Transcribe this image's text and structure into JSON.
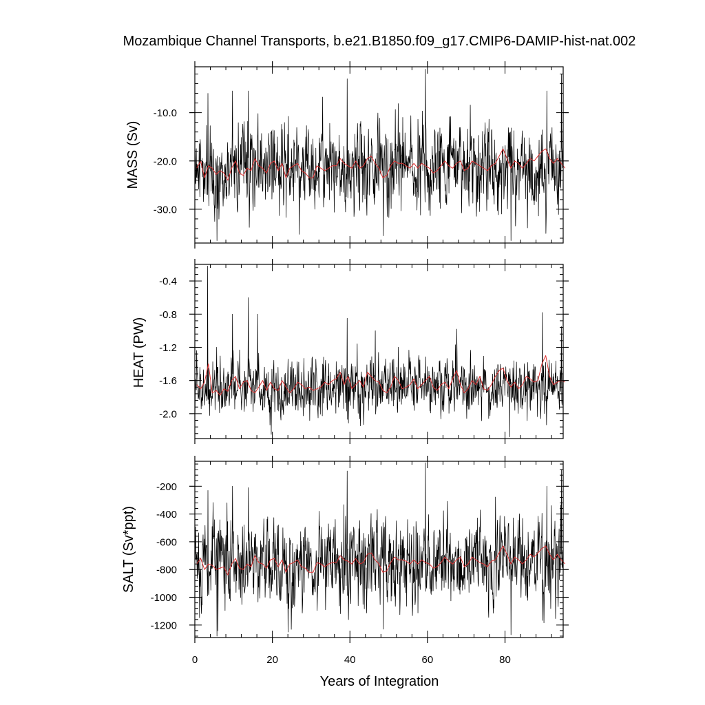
{
  "figure": {
    "title": "Mozambique Channel Transports, b.e21.B1850.f09_g17.CMIP6-DAMIP-hist-nat.002",
    "xlabel": "Years of Integration"
  },
  "chart_data": [
    {
      "type": "line",
      "ylabel": "MASS (Sv)",
      "xlim": [
        0,
        95
      ],
      "ylim": [
        -37,
        -0.5
      ],
      "x_ticks": [
        0,
        20,
        40,
        60,
        80
      ],
      "x_tick_labels": [
        "0",
        "20",
        "40",
        "60",
        "80"
      ],
      "y_ticks": [
        -10,
        -20,
        -30
      ],
      "y_tick_labels": [
        "-10.0",
        "-20.0",
        "-30.0"
      ],
      "grid": false,
      "series": [
        {
          "role": "monthly",
          "color": "#000000",
          "generated": {
            "n": 1140,
            "seed": 11,
            "mean": -21.3,
            "sd": 4.6,
            "lo": -36.5,
            "hi": -3,
            "spikes": [
              [
                3.4,
                -6
              ],
              [
                9.7,
                -5.5
              ],
              [
                13.8,
                -5.5
              ],
              [
                39.3,
                -3
              ],
              [
                59.5,
                -1
              ],
              [
                90.8,
                -5.5
              ],
              [
                94.5,
                -2
              ],
              [
                5.7,
                -36.5
              ],
              [
                81.5,
                -36.5
              ],
              [
                48.6,
                -35.5
              ]
            ]
          }
        },
        {
          "role": "annual-mean",
          "color": "#e03030",
          "values": [
            -21.5,
            -20.0,
            -23.5,
            -21.0,
            -21.5,
            -22.8,
            -22.0,
            -22.5,
            -24.0,
            -21.5,
            -20.0,
            -22.5,
            -23.0,
            -21.5,
            -22.0,
            -19.5,
            -21.0,
            -21.5,
            -22.5,
            -20.5,
            -20.0,
            -22.0,
            -20.5,
            -23.5,
            -21.5,
            -21.0,
            -20.5,
            -22.0,
            -22.5,
            -23.5,
            -23.5,
            -21.0,
            -21.5,
            -22.0,
            -21.5,
            -21.0,
            -21.0,
            -19.5,
            -20.5,
            -21.0,
            -21.5,
            -20.0,
            -21.5,
            -21.0,
            -19.5,
            -19.0,
            -20.5,
            -21.5,
            -23.5,
            -23.0,
            -21.0,
            -20.0,
            -20.5,
            -20.5,
            -21.0,
            -21.5,
            -20.5,
            -21.5,
            -20.5,
            -21.0,
            -21.5,
            -22.5,
            -22.0,
            -21.0,
            -20.0,
            -21.0,
            -21.5,
            -20.5,
            -20.0,
            -22.0,
            -21.5,
            -20.0,
            -20.5,
            -21.0,
            -21.5,
            -22.0,
            -21.0,
            -20.5,
            -19.0,
            -17.5,
            -19.5,
            -21.5,
            -20.0,
            -20.5,
            -21.5,
            -20.5,
            -19.5,
            -20.0,
            -19.0,
            -18.0,
            -17.5,
            -19.5,
            -20.5,
            -19.5,
            -20.5,
            -21.5
          ]
        }
      ]
    },
    {
      "type": "line",
      "ylabel": "HEAT (PW)",
      "xlim": [
        0,
        95
      ],
      "ylim": [
        -2.3,
        -0.2
      ],
      "x_ticks": [
        0,
        20,
        40,
        60,
        80
      ],
      "x_tick_labels": [
        "0",
        "20",
        "40",
        "60",
        "80"
      ],
      "y_ticks": [
        -0.4,
        -0.8,
        -1.2,
        -1.6,
        -2.0
      ],
      "y_tick_labels": [
        "-0.4",
        "-0.8",
        "-1.2",
        "-1.6",
        "-2.0"
      ],
      "grid": false,
      "series": [
        {
          "role": "monthly",
          "color": "#000000",
          "generated": {
            "n": 1140,
            "seed": 23,
            "mean": -1.68,
            "sd": 0.17,
            "lo": -2.28,
            "hi": -0.22,
            "spikes": [
              [
                3.3,
                -0.22
              ],
              [
                9.7,
                -0.8
              ],
              [
                13.8,
                -0.6
              ],
              [
                16.2,
                -0.8
              ],
              [
                39.3,
                -0.85
              ],
              [
                46.5,
                -1.0
              ],
              [
                67.5,
                -0.98
              ],
              [
                89.6,
                -0.78
              ],
              [
                94.5,
                -0.95
              ],
              [
                81.2,
                -2.28
              ],
              [
                19.7,
                -2.25
              ]
            ]
          }
        },
        {
          "role": "annual-mean",
          "color": "#e03030",
          "values": [
            -1.65,
            -1.7,
            -1.62,
            -1.4,
            -1.75,
            -1.72,
            -1.78,
            -1.7,
            -1.73,
            -1.6,
            -1.55,
            -1.7,
            -1.62,
            -1.6,
            -1.72,
            -1.75,
            -1.68,
            -1.6,
            -1.72,
            -1.62,
            -1.7,
            -1.72,
            -1.6,
            -1.68,
            -1.75,
            -1.7,
            -1.62,
            -1.65,
            -1.7,
            -1.68,
            -1.72,
            -1.7,
            -1.68,
            -1.62,
            -1.65,
            -1.6,
            -1.58,
            -1.5,
            -1.65,
            -1.55,
            -1.7,
            -1.65,
            -1.6,
            -1.68,
            -1.5,
            -1.55,
            -1.6,
            -1.62,
            -1.72,
            -1.75,
            -1.68,
            -1.55,
            -1.6,
            -1.7,
            -1.68,
            -1.65,
            -1.58,
            -1.7,
            -1.65,
            -1.6,
            -1.55,
            -1.68,
            -1.72,
            -1.65,
            -1.62,
            -1.7,
            -1.58,
            -1.48,
            -1.65,
            -1.75,
            -1.7,
            -1.6,
            -1.65,
            -1.55,
            -1.7,
            -1.72,
            -1.65,
            -1.55,
            -1.48,
            -1.45,
            -1.6,
            -1.68,
            -1.62,
            -1.7,
            -1.65,
            -1.55,
            -1.58,
            -1.62,
            -1.6,
            -1.4,
            -1.3,
            -1.55,
            -1.65,
            -1.62,
            -1.6,
            -1.62
          ]
        }
      ]
    },
    {
      "type": "line",
      "ylabel": "SALT (Sv*ppt)",
      "xlim": [
        0,
        95
      ],
      "ylim": [
        -1290,
        -20
      ],
      "x_ticks": [
        0,
        20,
        40,
        60,
        80
      ],
      "x_tick_labels": [
        "0",
        "20",
        "40",
        "60",
        "80"
      ],
      "y_ticks": [
        -200,
        -400,
        -600,
        -800,
        -1000,
        -1200
      ],
      "y_tick_labels": [
        "-200",
        "-400",
        "-600",
        "-800",
        "-1000",
        "-1200"
      ],
      "grid": false,
      "series": [
        {
          "role": "monthly",
          "color": "#000000",
          "generated": {
            "n": 1140,
            "seed": 37,
            "mean": -752,
            "sd": 165,
            "lo": -1280,
            "hi": -30,
            "spikes": [
              [
                3.4,
                -230
              ],
              [
                9.7,
                -200
              ],
              [
                13.8,
                -210
              ],
              [
                39.3,
                -90
              ],
              [
                59.5,
                -30
              ],
              [
                90.8,
                -200
              ],
              [
                94.5,
                -80
              ],
              [
                5.7,
                -1280
              ],
              [
                81.5,
                -1270
              ],
              [
                24.0,
                -1250
              ],
              [
                48.6,
                -1230
              ]
            ]
          }
        },
        {
          "role": "annual-mean",
          "color": "#e03030",
          "values": [
            -760,
            -720,
            -800,
            -760,
            -770,
            -800,
            -790,
            -780,
            -840,
            -760,
            -720,
            -790,
            -800,
            -760,
            -780,
            -700,
            -750,
            -760,
            -790,
            -730,
            -720,
            -780,
            -730,
            -820,
            -760,
            -750,
            -730,
            -780,
            -790,
            -820,
            -820,
            -750,
            -760,
            -780,
            -760,
            -750,
            -750,
            -700,
            -730,
            -740,
            -760,
            -720,
            -760,
            -750,
            -690,
            -680,
            -730,
            -760,
            -820,
            -810,
            -750,
            -710,
            -730,
            -730,
            -740,
            -760,
            -730,
            -760,
            -730,
            -750,
            -760,
            -790,
            -780,
            -750,
            -710,
            -740,
            -760,
            -730,
            -710,
            -780,
            -760,
            -710,
            -730,
            -750,
            -760,
            -780,
            -740,
            -730,
            -680,
            -630,
            -690,
            -760,
            -710,
            -730,
            -760,
            -730,
            -690,
            -710,
            -680,
            -650,
            -630,
            -690,
            -730,
            -690,
            -730,
            -760
          ]
        }
      ]
    }
  ]
}
